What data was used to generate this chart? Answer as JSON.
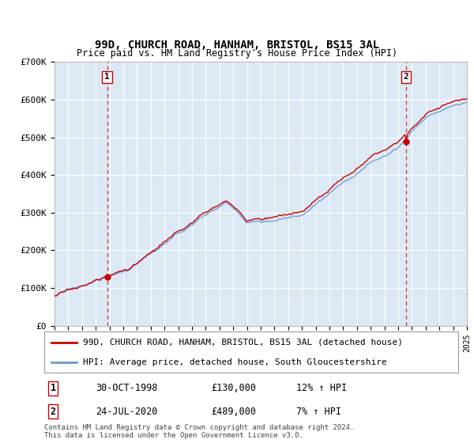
{
  "title": "99D, CHURCH ROAD, HANHAM, BRISTOL, BS15 3AL",
  "subtitle": "Price paid vs. HM Land Registry's House Price Index (HPI)",
  "bg_color": "#dce9f5",
  "ylabel": "",
  "ylim": [
    0,
    700000
  ],
  "yticks": [
    0,
    100000,
    200000,
    300000,
    400000,
    500000,
    600000,
    700000
  ],
  "ytick_labels": [
    "£0",
    "£100K",
    "£200K",
    "£300K",
    "£400K",
    "£500K",
    "£600K",
    "£700K"
  ],
  "sale1_x": 1998.83,
  "sale1_y": 130000,
  "sale1_label": "1",
  "sale2_x": 2020.56,
  "sale2_y": 489000,
  "sale2_label": "2",
  "legend_line1_label": "99D, CHURCH ROAD, HANHAM, BRISTOL, BS15 3AL (detached house)",
  "legend_line1_color": "#cc0000",
  "legend_line2_label": "HPI: Average price, detached house, South Gloucestershire",
  "legend_line2_color": "#6699cc",
  "footer_text": "Contains HM Land Registry data © Crown copyright and database right 2024.\nThis data is licensed under the Open Government Licence v3.0.",
  "table_rows": [
    [
      "1",
      "30-OCT-1998",
      "£130,000",
      "12% ↑ HPI"
    ],
    [
      "2",
      "24-JUL-2020",
      "£489,000",
      "7% ↑ HPI"
    ]
  ],
  "xmin": 1995,
  "xmax": 2025
}
